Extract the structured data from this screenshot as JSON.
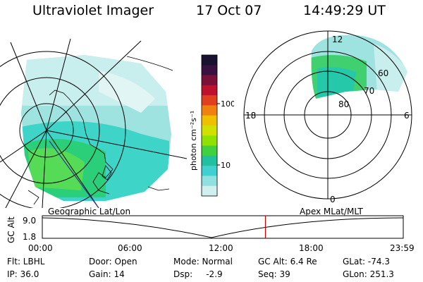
{
  "header": {
    "title": "Ultraviolet Imager",
    "date": "17 Oct 07",
    "time": "14:49:29 UT"
  },
  "colorbar": {
    "unit_label": "photon cm⁻²s⁻¹",
    "ticks": [
      "100",
      "10"
    ],
    "colors": [
      "#1a1030",
      "#3a1040",
      "#7a1038",
      "#c01030",
      "#e04020",
      "#f08010",
      "#f0c000",
      "#d0e000",
      "#90e000",
      "#40d040",
      "#20c0a0",
      "#40d0d0",
      "#90e0e0",
      "#d0f0f0"
    ]
  },
  "left_map": {
    "label": "Geographic Lat/Lon"
  },
  "right_map": {
    "label": "Apex MLat/MLT",
    "mlt_labels": {
      "top": "12",
      "left": "18",
      "right": "6",
      "bottom": "0"
    },
    "lat_labels": [
      "60",
      "70",
      "80"
    ]
  },
  "altitude_plot": {
    "y_axis_label": "GC Alt",
    "y_ticks": [
      "9.0",
      "1.8"
    ],
    "x_ticks": [
      "00:00",
      "06:00",
      "12:00",
      "18:00",
      "23:59"
    ],
    "marker_time": "14:49:29",
    "marker_color": "#cc0000"
  },
  "info": {
    "filter": "Flt: LBHL",
    "ip": "IP: 36.0",
    "door": "Door: Open",
    "gain": "Gain: 14",
    "mode": "Mode: Normal",
    "dsp": "Dsp:     -2.9",
    "gc_alt": "GC Alt: 6.4 Re",
    "seq": "Seq: 39",
    "glat": "GLat: -74.3",
    "glon": "GLon: 251.3"
  }
}
